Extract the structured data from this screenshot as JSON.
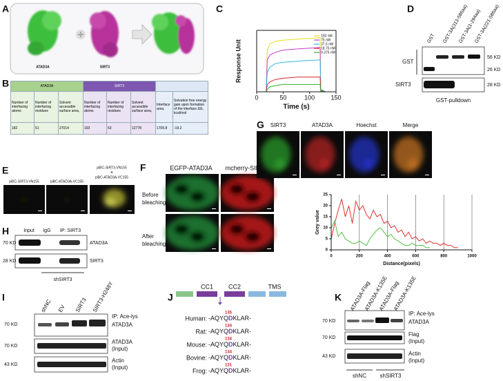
{
  "panels": {
    "A": {
      "letter": "A",
      "labels": [
        "ATAD3A",
        "SIRT3"
      ]
    },
    "B": {
      "letter": "B",
      "groups": [
        "ATAD3A",
        "SIRT3"
      ],
      "columns": [
        "Number of interfacing atoms",
        "Number of interfacing residues",
        "Solvent accessible surface area,",
        "Number of interfacing atoms",
        "Number of interfacing residues",
        "Solvent accessible surface area,",
        "Interface area,",
        "Solvation free energy gain upon formation of the interface ΔG, kcal/mol"
      ],
      "values": [
        182,
        51,
        27014,
        193,
        53,
        12778,
        1705.8,
        -19.2
      ]
    },
    "C": {
      "letter": "C"
    },
    "D": {
      "letter": "D",
      "lanes": [
        "GST",
        "GST-3A(313-586aa)",
        "GST-3A(1-294aa)",
        "GST-3A(221-586aa)"
      ],
      "rows": [
        "GST",
        "SIRT3"
      ],
      "markers": [
        "56 KD",
        "26 KD",
        "28 KD"
      ],
      "caption": "GST-pulldown"
    },
    "E": {
      "letter": "E",
      "labels": [
        "piBC-SIRT3-VN155",
        "piBC-ATAD3A-VC155",
        "piBC-SIRT3-VN155",
        "+",
        "piBC-ATAD3A-VC155"
      ]
    },
    "F": {
      "letter": "F",
      "columns": [
        "EGFP-ATAD3A",
        "mcherry-SIRT3"
      ],
      "rows": [
        [
          "Before",
          "bleaching"
        ],
        [
          "After",
          "bleaching"
        ]
      ]
    },
    "G": {
      "letter": "G",
      "columns": [
        "SIRT3",
        "ATAD3A",
        "Hoechst",
        "Merge"
      ]
    },
    "H": {
      "letter": "H",
      "lanes": [
        "Input",
        "IgG",
        "IP: SIRT3"
      ],
      "markers": [
        "70 KD",
        "28 KD"
      ],
      "rows": [
        "ATAD3A",
        "SIRT3"
      ],
      "group": "shSIRT3"
    },
    "I": {
      "letter": "I",
      "lanes": [
        "shNC",
        "EV",
        "SIRT3",
        "SIRT3-H248Y"
      ],
      "markers": [
        "70 KD",
        "70 KD",
        "43 KD"
      ],
      "rows": [
        "IP: Ace-lys",
        "ATAD3A",
        "ATAD3A",
        "(Input)",
        "Actin",
        "(Input)"
      ]
    },
    "J": {
      "letter": "J",
      "domains": [
        "CC1",
        "CC2",
        "TMS"
      ],
      "rows": [
        {
          "species": "Human:",
          "position": 135,
          "sequence": [
            "-AQYQ",
            "D",
            "KLAR-"
          ]
        },
        {
          "species": "Rat:",
          "position": 134,
          "sequence": [
            "-AQYQ",
            "D",
            "KLAR-"
          ]
        },
        {
          "species": "Mouse:",
          "position": 134,
          "sequence": [
            "-AQYQ",
            "D",
            "KLAR-"
          ]
        },
        {
          "species": "Bovine:",
          "position": 134,
          "sequence": [
            "-AQYQ",
            "D",
            "KLAR-"
          ]
        },
        {
          "species": "Frog:",
          "position": 131,
          "sequence": [
            "-AQYQ",
            "D",
            "KLAR-"
          ]
        }
      ]
    },
    "K": {
      "letter": "K",
      "lanes": [
        "ATAD3A-Flag",
        "ATAD3A-K135E",
        "ATAD3A-Flag",
        "ATAD3A-K135E"
      ],
      "markers": [
        "70 KD",
        "70 KD",
        "43 KD"
      ],
      "rows": [
        "IP: Ace-lys",
        "ATAD3A",
        "Flag",
        "(Input)",
        "Actin",
        "(Input)"
      ],
      "groups": [
        "shNC",
        "shSIRT3"
      ]
    }
  },
  "chart_data": [
    {
      "type": "line",
      "x_label": "Time (s)",
      "y_label": "Response Unit",
      "x": [
        0,
        18,
        20,
        25,
        35,
        50,
        80,
        120,
        121,
        130
      ],
      "xlim": [
        0,
        150
      ],
      "xticks": [
        0,
        50,
        100,
        150
      ],
      "ylim": [
        0,
        25
      ],
      "legend": "upper right",
      "series": [
        {
          "name": "150 nM",
          "color": "#e8dc1a",
          "values": [
            0,
            0,
            17,
            19.5,
            20.5,
            21,
            21.5,
            22,
            1,
            0
          ]
        },
        {
          "name": "75 nM",
          "color": "#c03cc8",
          "values": [
            0,
            0,
            13,
            15,
            16,
            17,
            17.5,
            18,
            1,
            0
          ]
        },
        {
          "name": "37.5 nM",
          "color": "#30b8e0",
          "values": [
            0,
            0,
            8,
            10,
            11.5,
            12,
            12.5,
            13,
            1,
            0
          ]
        },
        {
          "name": "18.75 nM",
          "color": "#d82828",
          "values": [
            0,
            0,
            3,
            4,
            5,
            5.5,
            6,
            6,
            0.5,
            0
          ]
        },
        {
          "name": "9.375 nM",
          "color": "#30b030",
          "values": [
            0,
            0,
            1,
            2,
            2.5,
            3,
            3,
            3,
            0.3,
            0
          ]
        }
      ]
    },
    {
      "type": "line",
      "x_label": "Distance(pixels)",
      "y_label": "Grey value",
      "x": [
        0,
        25,
        50,
        75,
        100,
        125,
        150,
        175,
        200,
        225,
        250,
        275,
        300,
        325,
        350,
        375,
        400,
        425,
        450,
        475,
        500,
        525,
        550,
        575,
        600,
        625,
        650,
        675,
        700,
        725,
        750,
        775,
        800,
        825,
        850,
        875,
        900
      ],
      "xlim": [
        0,
        1000
      ],
      "xticks": [
        0,
        200,
        400,
        600,
        800,
        1000
      ],
      "ylim": [
        0,
        25
      ],
      "yticks": [
        0,
        5,
        10,
        15,
        20,
        25
      ],
      "xgrid": true,
      "series": [
        {
          "color": "#e03030",
          "values": [
            5,
            12,
            18,
            23,
            15,
            20,
            12,
            22,
            18,
            20,
            16,
            14,
            18,
            15,
            16,
            12,
            13,
            10,
            11,
            8,
            9,
            6,
            8,
            5,
            6,
            4,
            5,
            3,
            4,
            3,
            3,
            2,
            3,
            2,
            2,
            1,
            1
          ]
        },
        {
          "color": "#50c040",
          "values": [
            10,
            13,
            6,
            8,
            5,
            4,
            3,
            3,
            4,
            3,
            2,
            5,
            7,
            9,
            10,
            8,
            6,
            7,
            5,
            4,
            3,
            2,
            2,
            3,
            2,
            2,
            2,
            1,
            1,
            null,
            null,
            null,
            null,
            null,
            null,
            null,
            null
          ]
        }
      ]
    }
  ]
}
